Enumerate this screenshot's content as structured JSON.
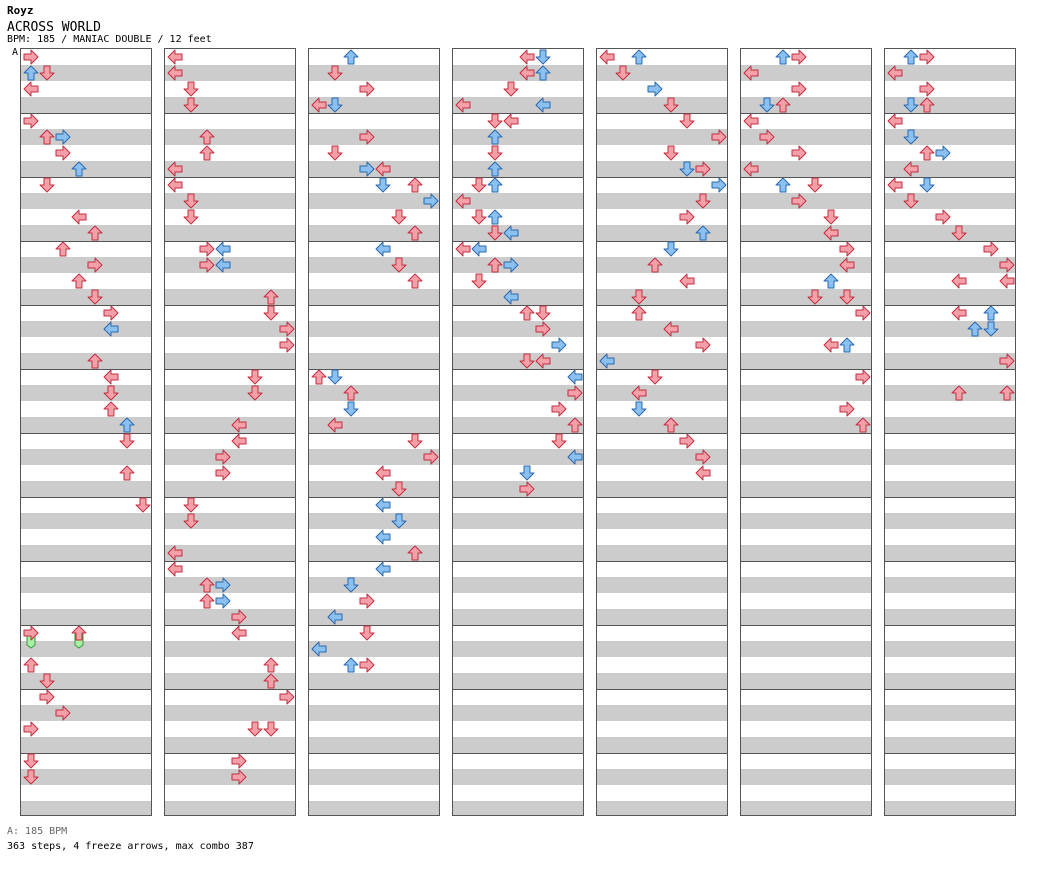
{
  "author": "Royz",
  "title": "ACROSS WORLD",
  "meta": "BPM: 185 / MANIAC DOUBLE / 12 feet",
  "bpm_marker": "A",
  "footer": {
    "bpm_line": "A: 185 BPM",
    "stats": "363 steps, 4 freeze arrows, max combo 387"
  },
  "colors": {
    "quarter": "#f4a0a8",
    "eighth": "#8cc0f0",
    "freeze": "#a8f0a8",
    "band": "#cccccc"
  },
  "chart": {
    "columns": 7,
    "measures_per_column": 12,
    "lanes": [
      "P1-left",
      "P1-down",
      "P1-up",
      "P1-right",
      "P2-left",
      "P2-down",
      "P2-up",
      "P2-right"
    ]
  },
  "notes": [
    [
      [
        0,
        0,
        "right",
        "r"
      ],
      [
        1,
        0,
        "up",
        "b"
      ],
      [
        1,
        1,
        "down",
        "r"
      ],
      [
        2,
        0,
        "left",
        "r"
      ],
      [
        4,
        0,
        "right",
        "r"
      ],
      [
        5,
        1,
        "up",
        "r"
      ],
      [
        5,
        2,
        "right",
        "b"
      ],
      [
        6,
        2,
        "right",
        "r"
      ],
      [
        7,
        3,
        "up",
        "b"
      ],
      [
        8,
        1,
        "down",
        "r"
      ],
      [
        10,
        3,
        "left",
        "r"
      ],
      [
        11,
        4,
        "up",
        "r"
      ],
      [
        12,
        2,
        "up",
        "r"
      ],
      [
        13,
        4,
        "right",
        "r"
      ],
      [
        14,
        3,
        "up",
        "r"
      ],
      [
        15,
        4,
        "down",
        "r"
      ],
      [
        16,
        5,
        "right",
        "r"
      ],
      [
        17,
        5,
        "left",
        "b"
      ],
      [
        19,
        4,
        "up",
        "r"
      ],
      [
        20,
        5,
        "left",
        "r"
      ],
      [
        21,
        5,
        "down",
        "r"
      ],
      [
        22,
        5,
        "up",
        "r"
      ],
      [
        23,
        6,
        "up",
        "b"
      ],
      [
        24,
        6,
        "down",
        "r"
      ],
      [
        26,
        6,
        "up",
        "r"
      ],
      [
        28,
        7,
        "down",
        "r"
      ],
      [
        30,
        8,
        "down",
        "r"
      ],
      [
        36,
        3,
        "up",
        "g"
      ],
      [
        36,
        0,
        "right",
        "g"
      ],
      [
        38,
        0,
        "up",
        "r"
      ],
      [
        39,
        1,
        "down",
        "r"
      ],
      [
        40,
        1,
        "right",
        "r"
      ],
      [
        41,
        2,
        "right",
        "r"
      ],
      [
        42,
        0,
        "right",
        "r"
      ],
      [
        44,
        0,
        "down",
        "r"
      ],
      [
        45,
        0,
        "down",
        "r"
      ]
    ],
    [
      [
        0,
        0,
        "left",
        "r"
      ],
      [
        1,
        0,
        "left",
        "r"
      ],
      [
        2,
        1,
        "down",
        "r"
      ],
      [
        3,
        1,
        "down",
        "r"
      ],
      [
        5,
        2,
        "up",
        "r"
      ],
      [
        6,
        2,
        "up",
        "r"
      ],
      [
        7,
        0,
        "left",
        "r"
      ],
      [
        8,
        0,
        "left",
        "r"
      ],
      [
        9,
        1,
        "down",
        "r"
      ],
      [
        10,
        1,
        "down",
        "r"
      ],
      [
        12,
        2,
        "right",
        "r"
      ],
      [
        13,
        2,
        "right",
        "r"
      ],
      [
        12,
        3,
        "left",
        "b"
      ],
      [
        13,
        3,
        "left",
        "b"
      ],
      [
        15,
        6,
        "up",
        "r"
      ],
      [
        16,
        6,
        "down",
        "r"
      ],
      [
        17,
        7,
        "right",
        "r"
      ],
      [
        18,
        7,
        "right",
        "r"
      ],
      [
        20,
        5,
        "down",
        "r"
      ],
      [
        21,
        5,
        "down",
        "r"
      ],
      [
        23,
        4,
        "left",
        "r"
      ],
      [
        24,
        4,
        "left",
        "r"
      ],
      [
        25,
        3,
        "right",
        "r"
      ],
      [
        26,
        3,
        "right",
        "r"
      ],
      [
        28,
        1,
        "down",
        "r"
      ],
      [
        29,
        1,
        "down",
        "r"
      ],
      [
        31,
        0,
        "left",
        "r"
      ],
      [
        32,
        0,
        "left",
        "r"
      ],
      [
        33,
        2,
        "up",
        "r"
      ],
      [
        34,
        2,
        "up",
        "r"
      ],
      [
        33,
        3,
        "right",
        "b"
      ],
      [
        34,
        3,
        "right",
        "b"
      ],
      [
        35,
        4,
        "right",
        "r"
      ],
      [
        36,
        4,
        "left",
        "r"
      ],
      [
        38,
        6,
        "up",
        "r"
      ],
      [
        39,
        6,
        "up",
        "r"
      ],
      [
        40,
        7,
        "right",
        "r"
      ],
      [
        42,
        5,
        "down",
        "r"
      ],
      [
        42,
        6,
        "down",
        "r"
      ],
      [
        44,
        4,
        "right",
        "r"
      ],
      [
        45,
        4,
        "right",
        "r"
      ]
    ],
    [
      [
        0,
        2,
        "up",
        "b"
      ],
      [
        1,
        1,
        "down",
        "r"
      ],
      [
        2,
        3,
        "right",
        "r"
      ],
      [
        3,
        1,
        "down",
        "b"
      ],
      [
        3,
        0,
        "left",
        "r"
      ],
      [
        5,
        3,
        "right",
        "r"
      ],
      [
        6,
        1,
        "down",
        "r"
      ],
      [
        7,
        3,
        "right",
        "b"
      ],
      [
        7,
        4,
        "left",
        "r"
      ],
      [
        8,
        6,
        "up",
        "r"
      ],
      [
        8,
        4,
        "down",
        "b"
      ],
      [
        9,
        7,
        "right",
        "b"
      ],
      [
        10,
        5,
        "down",
        "r"
      ],
      [
        11,
        6,
        "up",
        "r"
      ],
      [
        12,
        4,
        "left",
        "b"
      ],
      [
        13,
        5,
        "down",
        "r"
      ],
      [
        14,
        6,
        "up",
        "r"
      ],
      [
        20,
        0,
        "up",
        "r"
      ],
      [
        20,
        1,
        "down",
        "b"
      ],
      [
        21,
        2,
        "up",
        "r"
      ],
      [
        22,
        2,
        "down",
        "b"
      ],
      [
        23,
        1,
        "left",
        "r"
      ],
      [
        24,
        6,
        "down",
        "r"
      ],
      [
        25,
        7,
        "right",
        "r"
      ],
      [
        26,
        4,
        "left",
        "r"
      ],
      [
        27,
        5,
        "down",
        "r"
      ],
      [
        28,
        4,
        "left",
        "b"
      ],
      [
        29,
        5,
        "down",
        "b"
      ],
      [
        30,
        4,
        "left",
        "b"
      ],
      [
        31,
        6,
        "up",
        "r"
      ],
      [
        32,
        4,
        "left",
        "b"
      ],
      [
        33,
        2,
        "down",
        "b"
      ],
      [
        34,
        3,
        "right",
        "r"
      ],
      [
        35,
        1,
        "left",
        "b"
      ],
      [
        36,
        3,
        "down",
        "r"
      ],
      [
        37,
        0,
        "left",
        "b"
      ],
      [
        38,
        2,
        "up",
        "b"
      ],
      [
        38,
        3,
        "right",
        "r"
      ]
    ],
    [
      [
        0,
        4,
        "left",
        "r"
      ],
      [
        0,
        5,
        "down",
        "b"
      ],
      [
        1,
        4,
        "left",
        "r"
      ],
      [
        1,
        5,
        "up",
        "b"
      ],
      [
        2,
        3,
        "down",
        "r"
      ],
      [
        3,
        5,
        "left",
        "b"
      ],
      [
        3,
        0,
        "left",
        "r"
      ],
      [
        4,
        2,
        "down",
        "r"
      ],
      [
        4,
        3,
        "left",
        "r"
      ],
      [
        5,
        2,
        "up",
        "b"
      ],
      [
        6,
        2,
        "down",
        "r"
      ],
      [
        7,
        2,
        "up",
        "b"
      ],
      [
        8,
        1,
        "down",
        "r"
      ],
      [
        8,
        2,
        "up",
        "b"
      ],
      [
        9,
        0,
        "left",
        "r"
      ],
      [
        10,
        1,
        "down",
        "r"
      ],
      [
        10,
        2,
        "up",
        "b"
      ],
      [
        11,
        2,
        "down",
        "r"
      ],
      [
        11,
        3,
        "left",
        "b"
      ],
      [
        12,
        0,
        "left",
        "r"
      ],
      [
        12,
        1,
        "left",
        "b"
      ],
      [
        13,
        2,
        "up",
        "r"
      ],
      [
        13,
        3,
        "right",
        "b"
      ],
      [
        14,
        1,
        "down",
        "r"
      ],
      [
        15,
        3,
        "left",
        "b"
      ],
      [
        16,
        4,
        "up",
        "r"
      ],
      [
        16,
        5,
        "down",
        "r"
      ],
      [
        17,
        5,
        "right",
        "r"
      ],
      [
        18,
        6,
        "right",
        "b"
      ],
      [
        19,
        5,
        "left",
        "r"
      ],
      [
        19,
        4,
        "down",
        "r"
      ],
      [
        20,
        7,
        "left",
        "b"
      ],
      [
        21,
        7,
        "right",
        "r"
      ],
      [
        22,
        6,
        "right",
        "r"
      ],
      [
        23,
        7,
        "up",
        "r"
      ],
      [
        24,
        6,
        "down",
        "r"
      ],
      [
        25,
        7,
        "left",
        "b"
      ],
      [
        26,
        4,
        "down",
        "b"
      ],
      [
        27,
        4,
        "right",
        "r"
      ]
    ],
    [
      [
        0,
        0,
        "left",
        "r"
      ],
      [
        0,
        2,
        "up",
        "b"
      ],
      [
        1,
        1,
        "down",
        "r"
      ],
      [
        2,
        3,
        "right",
        "b"
      ],
      [
        3,
        4,
        "down",
        "r"
      ],
      [
        4,
        5,
        "down",
        "r"
      ],
      [
        5,
        7,
        "right",
        "r"
      ],
      [
        6,
        4,
        "down",
        "r"
      ],
      [
        7,
        6,
        "right",
        "r"
      ],
      [
        7,
        5,
        "down",
        "b"
      ],
      [
        8,
        7,
        "right",
        "b"
      ],
      [
        9,
        6,
        "down",
        "r"
      ],
      [
        10,
        5,
        "right",
        "r"
      ],
      [
        11,
        6,
        "up",
        "b"
      ],
      [
        12,
        4,
        "down",
        "b"
      ],
      [
        13,
        3,
        "up",
        "r"
      ],
      [
        14,
        5,
        "left",
        "r"
      ],
      [
        15,
        2,
        "down",
        "r"
      ],
      [
        16,
        2,
        "up",
        "r"
      ],
      [
        17,
        4,
        "left",
        "r"
      ],
      [
        18,
        6,
        "right",
        "r"
      ],
      [
        19,
        0,
        "left",
        "b"
      ],
      [
        20,
        3,
        "down",
        "r"
      ],
      [
        21,
        2,
        "left",
        "r"
      ],
      [
        22,
        2,
        "down",
        "b"
      ],
      [
        23,
        4,
        "up",
        "r"
      ],
      [
        24,
        5,
        "right",
        "r"
      ],
      [
        25,
        6,
        "right",
        "r"
      ],
      [
        26,
        6,
        "left",
        "r"
      ]
    ],
    [
      [
        0,
        2,
        "up",
        "b"
      ],
      [
        0,
        3,
        "right",
        "r"
      ],
      [
        1,
        0,
        "left",
        "r"
      ],
      [
        2,
        3,
        "right",
        "r"
      ],
      [
        3,
        1,
        "down",
        "b"
      ],
      [
        3,
        2,
        "up",
        "r"
      ],
      [
        4,
        0,
        "left",
        "r"
      ],
      [
        5,
        1,
        "right",
        "r"
      ],
      [
        6,
        3,
        "right",
        "r"
      ],
      [
        7,
        0,
        "left",
        "r"
      ],
      [
        8,
        4,
        "down",
        "r"
      ],
      [
        8,
        2,
        "up",
        "b"
      ],
      [
        9,
        3,
        "right",
        "r"
      ],
      [
        10,
        5,
        "down",
        "r"
      ],
      [
        11,
        5,
        "left",
        "r"
      ],
      [
        12,
        6,
        "right",
        "r"
      ],
      [
        13,
        6,
        "left",
        "r"
      ],
      [
        14,
        5,
        "up",
        "b"
      ],
      [
        15,
        4,
        "down",
        "r"
      ],
      [
        15,
        6,
        "down",
        "r"
      ],
      [
        16,
        7,
        "right",
        "r"
      ],
      [
        18,
        5,
        "left",
        "r"
      ],
      [
        18,
        6,
        "up",
        "b"
      ],
      [
        20,
        7,
        "right",
        "r"
      ],
      [
        22,
        6,
        "right",
        "r"
      ],
      [
        23,
        7,
        "up",
        "r"
      ]
    ],
    [
      [
        0,
        2,
        "right",
        "r"
      ],
      [
        0,
        1,
        "up",
        "b"
      ],
      [
        1,
        0,
        "left",
        "r"
      ],
      [
        2,
        2,
        "right",
        "r"
      ],
      [
        3,
        1,
        "down",
        "b"
      ],
      [
        3,
        2,
        "up",
        "r"
      ],
      [
        4,
        0,
        "left",
        "r"
      ],
      [
        5,
        1,
        "down",
        "b"
      ],
      [
        6,
        2,
        "up",
        "r"
      ],
      [
        6,
        3,
        "right",
        "b"
      ],
      [
        7,
        1,
        "left",
        "r"
      ],
      [
        8,
        0,
        "left",
        "r"
      ],
      [
        8,
        2,
        "down",
        "b"
      ],
      [
        9,
        1,
        "down",
        "r"
      ],
      [
        10,
        3,
        "right",
        "r"
      ],
      [
        11,
        4,
        "down",
        "r"
      ],
      [
        12,
        6,
        "right",
        "r"
      ],
      [
        13,
        7,
        "right",
        "r"
      ],
      [
        14,
        4,
        "left",
        "r"
      ],
      [
        14,
        7,
        "left",
        "r"
      ],
      [
        16,
        4,
        "left",
        "r"
      ],
      [
        16,
        6,
        "up",
        "b"
      ],
      [
        17,
        5,
        "up",
        "b"
      ],
      [
        17,
        6,
        "down",
        "b"
      ],
      [
        19,
        7,
        "right",
        "r"
      ],
      [
        21,
        4,
        "up",
        "r"
      ],
      [
        21,
        7,
        "up",
        "r"
      ]
    ]
  ]
}
